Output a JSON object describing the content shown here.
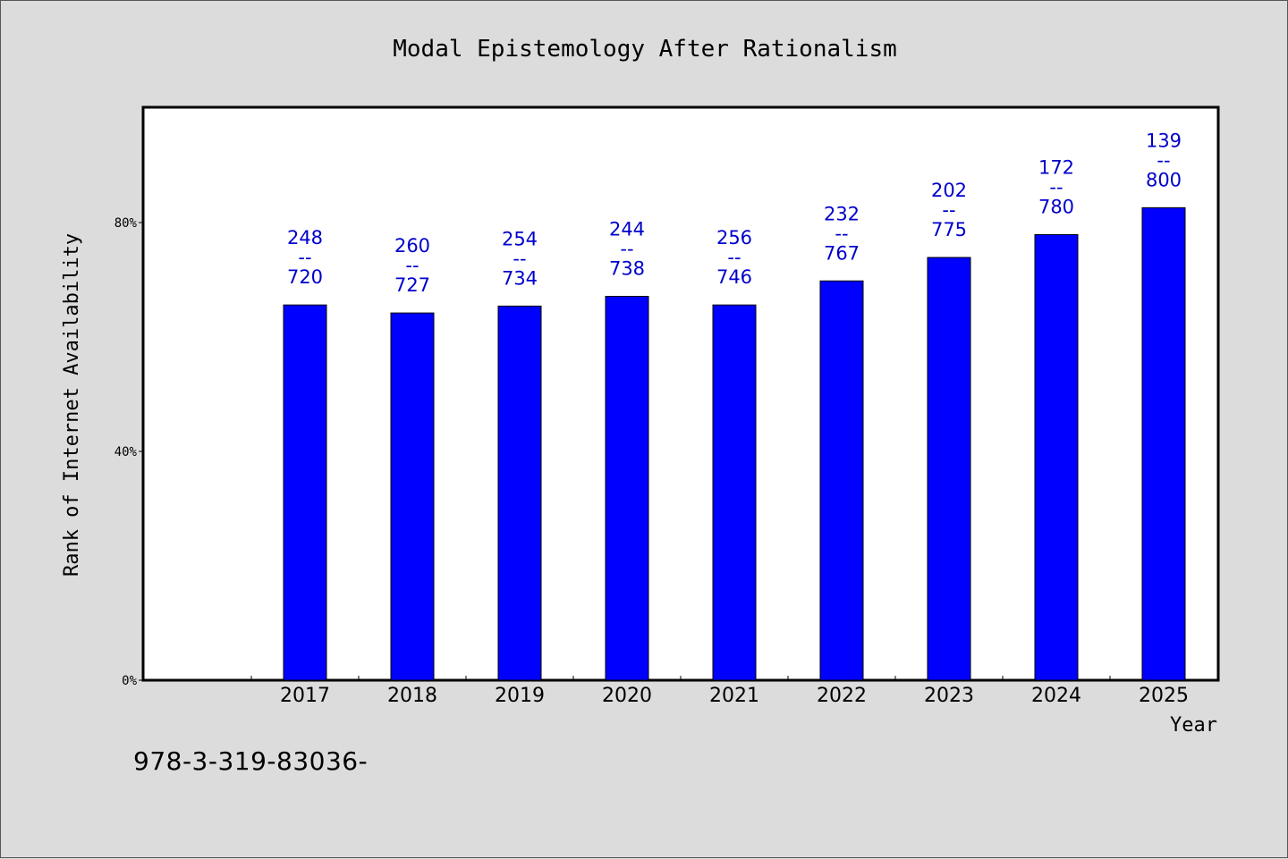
{
  "chart_data": {
    "type": "bar",
    "title": "Modal Epistemology After Rationalism",
    "xlabel": "Year",
    "ylabel": "Rank of Internet Availability",
    "ylim": [
      0,
      100
    ],
    "yticks": [
      0,
      40,
      80
    ],
    "ytick_labels": [
      "0%",
      "40%",
      "80%"
    ],
    "grid": false,
    "categories": [
      "2017",
      "2018",
      "2019",
      "2020",
      "2021",
      "2022",
      "2023",
      "2024",
      "2025"
    ],
    "values": [
      65.6,
      64.2,
      65.4,
      67.1,
      65.6,
      69.8,
      73.9,
      77.9,
      82.6
    ],
    "data_labels": [
      [
        "248",
        "--",
        "720"
      ],
      [
        "260",
        "--",
        "727"
      ],
      [
        "254",
        "--",
        "734"
      ],
      [
        "244",
        "--",
        "738"
      ],
      [
        "256",
        "--",
        "746"
      ],
      [
        "232",
        "--",
        "767"
      ],
      [
        "202",
        "--",
        "775"
      ],
      [
        "172",
        "--",
        "780"
      ],
      [
        "139",
        "--",
        "800"
      ]
    ],
    "colors": {
      "bar": "#0000ff",
      "label": "#0000cc",
      "background": "#dcdcdc",
      "plot_bg": "#ffffff"
    }
  },
  "footer": {
    "text": "978-3-319-83036-"
  }
}
